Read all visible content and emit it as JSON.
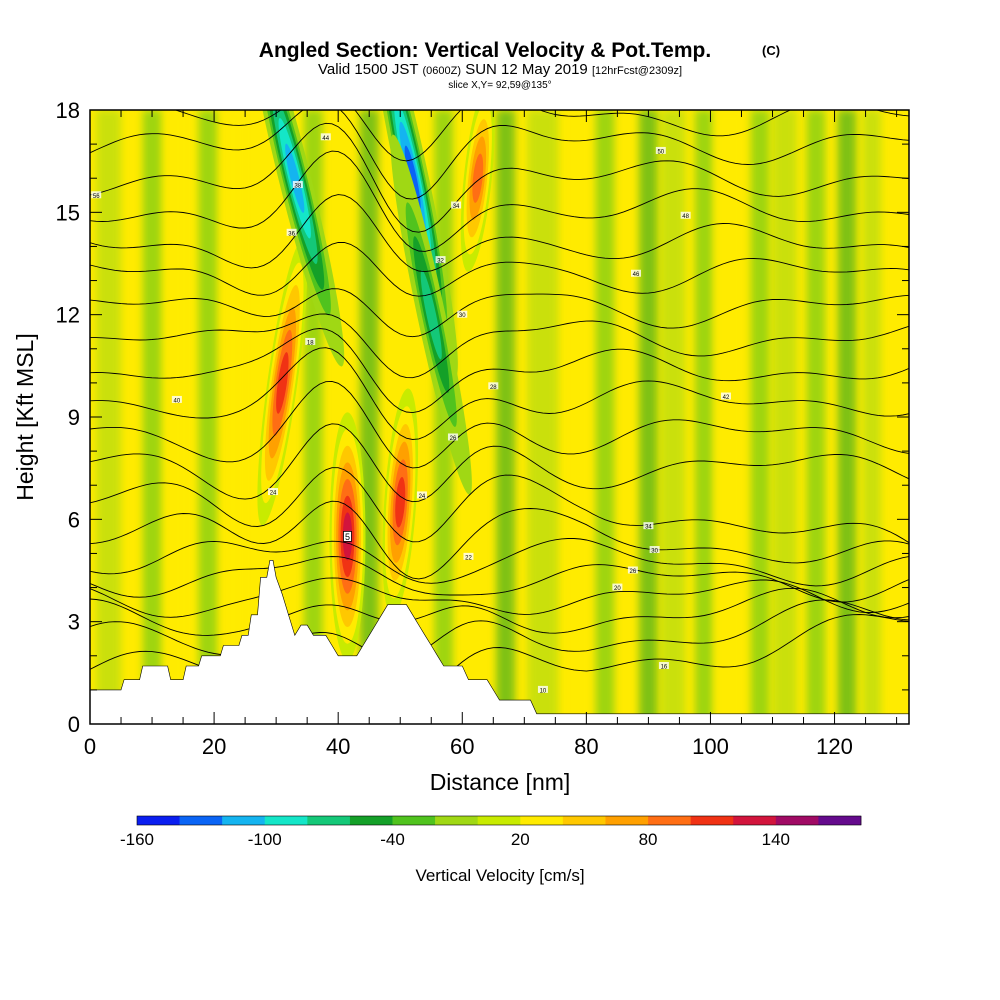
{
  "header": {
    "title": "Angled Section: Vertical Velocity & Pot.Temp.",
    "title_unit": "(C)",
    "valid_prefix": "Valid 1500 JST",
    "valid_utc": "(0600Z)",
    "valid_date": "SUN 12 May 2019",
    "forecast": "[12hrFcst@2309z]",
    "slice": "slice X,Y= 92,59@135°"
  },
  "chart_data": {
    "type": "heatmap",
    "xlabel": "Distance [nm]",
    "ylabel": "Height [Kft MSL]",
    "xlim": [
      0,
      132
    ],
    "ylim": [
      0,
      18
    ],
    "x_ticks": [
      0,
      20,
      40,
      60,
      80,
      100,
      120
    ],
    "y_ticks": [
      0,
      3,
      6,
      9,
      12,
      15,
      18
    ],
    "colorbar": {
      "label": "Vertical Velocity [cm/s]",
      "tick_labels": [
        "-160",
        "-100",
        "-40",
        "20",
        "80",
        "140"
      ],
      "tick_values": [
        -160,
        -100,
        -40,
        20,
        80,
        140
      ],
      "levels": [
        -160,
        -140,
        -120,
        -100,
        -80,
        -60,
        -40,
        -20,
        0,
        20,
        40,
        60,
        80,
        100,
        120,
        140,
        160
      ],
      "colors": [
        "#0a1ef0",
        "#0a64f5",
        "#14b4f0",
        "#14e6c8",
        "#14c878",
        "#14a028",
        "#50c31e",
        "#a0d814",
        "#c8eb00",
        "#ffeb00",
        "#ffc800",
        "#ffa000",
        "#ff6e14",
        "#f03214",
        "#d2143c",
        "#a00a64",
        "#640a8c"
      ]
    },
    "terrain_kft": [
      [
        0,
        1
      ],
      [
        5,
        1
      ],
      [
        5.5,
        1.3
      ],
      [
        8,
        1.3
      ],
      [
        8.5,
        1.7
      ],
      [
        12.5,
        1.7
      ],
      [
        13,
        1.3
      ],
      [
        15,
        1.3
      ],
      [
        15.5,
        1.7
      ],
      [
        17.5,
        1.7
      ],
      [
        18,
        2
      ],
      [
        21,
        2
      ],
      [
        21.5,
        2.3
      ],
      [
        24,
        2.3
      ],
      [
        24.5,
        2.6
      ],
      [
        25.5,
        2.6
      ],
      [
        26,
        3.2
      ],
      [
        27,
        3.2
      ],
      [
        27.5,
        4.3
      ],
      [
        28.5,
        4.3
      ],
      [
        29,
        4.8
      ],
      [
        29.5,
        4.8
      ],
      [
        30,
        4.3
      ],
      [
        31,
        3.8
      ],
      [
        32,
        3.2
      ],
      [
        33,
        2.6
      ],
      [
        34,
        2.9
      ],
      [
        35,
        2.9
      ],
      [
        36,
        2.6
      ],
      [
        38,
        2.6
      ],
      [
        39,
        2.3
      ],
      [
        40,
        2
      ],
      [
        43,
        2
      ],
      [
        44,
        2.3
      ],
      [
        45,
        2.6
      ],
      [
        46,
        2.9
      ],
      [
        47,
        3.2
      ],
      [
        48,
        3.5
      ],
      [
        49,
        3.5
      ],
      [
        50,
        3.5
      ],
      [
        51,
        3.5
      ],
      [
        52,
        3.2
      ],
      [
        53,
        2.9
      ],
      [
        54,
        2.6
      ],
      [
        55,
        2.3
      ],
      [
        56,
        2
      ],
      [
        57,
        1.7
      ],
      [
        60,
        1.7
      ],
      [
        61,
        1.3
      ],
      [
        64,
        1.3
      ],
      [
        65,
        1
      ],
      [
        66,
        0.7
      ],
      [
        71,
        0.7
      ],
      [
        72,
        0.3
      ],
      [
        132,
        0.3
      ]
    ],
    "updrafts": [
      {
        "x": 41.5,
        "y": 5.5,
        "w": 134,
        "note": "5"
      },
      {
        "x": 31,
        "y": 10,
        "w": 100
      },
      {
        "x": 50,
        "y": 6.5,
        "w": 110
      },
      {
        "x": 62.5,
        "y": 16,
        "w": 90
      }
    ],
    "downdrafts": [
      {
        "x": 33,
        "y": 16,
        "w": -120
      },
      {
        "x": 52,
        "y": 16,
        "w": -150
      },
      {
        "x": 55,
        "y": 12,
        "w": -90
      }
    ],
    "contour_labels": [
      {
        "x": 1,
        "y": 15.5,
        "text": "56"
      },
      {
        "x": 38,
        "y": 17.2,
        "text": "44"
      },
      {
        "x": 33.5,
        "y": 15.8,
        "text": "38"
      },
      {
        "x": 32.5,
        "y": 14.4,
        "text": "36"
      },
      {
        "x": 35.5,
        "y": 11.2,
        "text": "18"
      },
      {
        "x": 14,
        "y": 9.5,
        "text": "40"
      },
      {
        "x": 29.5,
        "y": 6.8,
        "text": "24"
      },
      {
        "x": 59,
        "y": 15.2,
        "text": "34"
      },
      {
        "x": 56.5,
        "y": 13.6,
        "text": "32"
      },
      {
        "x": 60,
        "y": 12,
        "text": "30"
      },
      {
        "x": 65,
        "y": 9.9,
        "text": "28"
      },
      {
        "x": 58.5,
        "y": 8.4,
        "text": "26"
      },
      {
        "x": 53.5,
        "y": 6.7,
        "text": "24"
      },
      {
        "x": 61,
        "y": 4.9,
        "text": "22"
      },
      {
        "x": 92,
        "y": 16.8,
        "text": "50"
      },
      {
        "x": 96,
        "y": 14.9,
        "text": "48"
      },
      {
        "x": 88,
        "y": 13.2,
        "text": "46"
      },
      {
        "x": 102.5,
        "y": 9.6,
        "text": "42"
      },
      {
        "x": 90,
        "y": 5.8,
        "text": "34"
      },
      {
        "x": 91,
        "y": 5.1,
        "text": "30"
      },
      {
        "x": 87.5,
        "y": 4.5,
        "text": "26"
      },
      {
        "x": 85,
        "y": 4,
        "text": "20"
      },
      {
        "x": 92.5,
        "y": 1.7,
        "text": "16"
      },
      {
        "x": 73,
        "y": 1,
        "text": "10"
      }
    ]
  }
}
